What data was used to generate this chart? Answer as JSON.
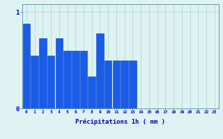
{
  "hours": [
    0,
    1,
    2,
    3,
    4,
    5,
    6,
    7,
    8,
    9,
    10,
    11,
    12,
    13,
    14,
    15,
    16,
    17,
    18,
    19,
    20,
    21,
    22,
    23
  ],
  "values": [
    0.88,
    0.55,
    0.73,
    0.55,
    0.73,
    0.6,
    0.6,
    0.6,
    0.33,
    0.78,
    0.5,
    0.5,
    0.5,
    0.5,
    0,
    0,
    0,
    0,
    0,
    0,
    0,
    0,
    0,
    0
  ],
  "bar_color": "#1a5ce8",
  "bar_edge_color": "#0044cc",
  "background_color": "#dff2f2",
  "grid_color": "#b0d8d8",
  "axis_color": "#6699aa",
  "xlabel": "Précipitations 1h ( mm )",
  "xlabel_color": "#0000bb",
  "tick_color": "#0000bb",
  "ylim": [
    0,
    1.08
  ],
  "yticks": [
    0,
    1
  ],
  "xlim": [
    -0.5,
    23.5
  ],
  "figwidth": 3.2,
  "figheight": 2.0,
  "dpi": 100
}
